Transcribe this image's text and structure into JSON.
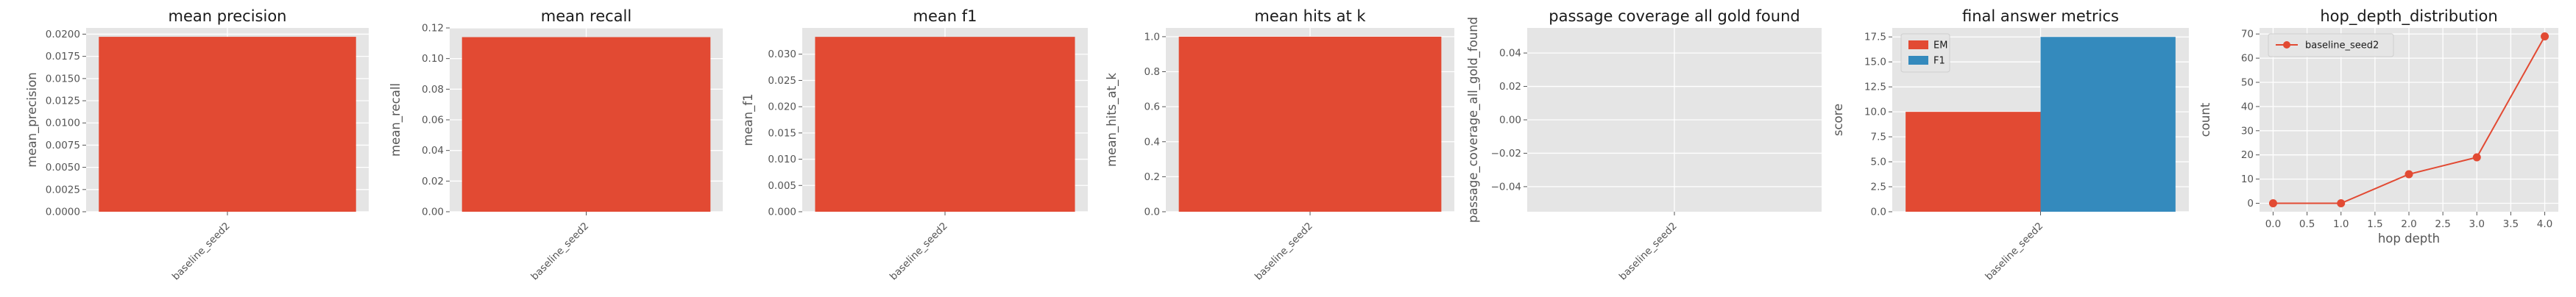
{
  "figure": {
    "background": "#ffffff",
    "panel_background": "#e5e5e5",
    "grid_color": "#ffffff"
  },
  "chart_data": [
    {
      "type": "bar",
      "title": "mean precision",
      "xlabel": "",
      "ylabel": "mean_precision",
      "categories": [
        "baseline_seed2"
      ],
      "series": [
        {
          "values": [
            0.0197
          ],
          "color": "#e24a33"
        }
      ],
      "ylim": [
        0,
        0.0207
      ],
      "yticks": [
        0,
        0.0025,
        0.005,
        0.0075,
        0.01,
        0.0125,
        0.015,
        0.0175,
        0.02
      ],
      "ytick_labels": [
        "0.0000",
        "0.0025",
        "0.0050",
        "0.0075",
        "0.0100",
        "0.0125",
        "0.0150",
        "0.0175",
        "0.0200"
      ],
      "grid": true
    },
    {
      "type": "bar",
      "title": "mean recall",
      "xlabel": "",
      "ylabel": "mean_recall",
      "categories": [
        "baseline_seed2"
      ],
      "series": [
        {
          "values": [
            0.114
          ],
          "color": "#e24a33"
        }
      ],
      "ylim": [
        0,
        0.12
      ],
      "yticks": [
        0,
        0.02,
        0.04,
        0.06,
        0.08,
        0.1,
        0.12
      ],
      "ytick_labels": [
        "0.00",
        "0.02",
        "0.04",
        "0.06",
        "0.08",
        "0.10",
        "0.12"
      ],
      "grid": true
    },
    {
      "type": "bar",
      "title": "mean f1",
      "xlabel": "",
      "ylabel": "mean_f1",
      "categories": [
        "baseline_seed2"
      ],
      "series": [
        {
          "values": [
            0.0333
          ],
          "color": "#e24a33"
        }
      ],
      "ylim": [
        0,
        0.035
      ],
      "yticks": [
        0,
        0.005,
        0.01,
        0.015,
        0.02,
        0.025,
        0.03
      ],
      "ytick_labels": [
        "0.000",
        "0.005",
        "0.010",
        "0.015",
        "0.020",
        "0.025",
        "0.030"
      ],
      "grid": true
    },
    {
      "type": "bar",
      "title": "mean hits at k",
      "xlabel": "",
      "ylabel": "mean_hits_at_k",
      "categories": [
        "baseline_seed2"
      ],
      "series": [
        {
          "values": [
            1.0
          ],
          "color": "#e24a33"
        }
      ],
      "ylim": [
        0,
        1.05
      ],
      "yticks": [
        0,
        0.2,
        0.4,
        0.6,
        0.8,
        1.0
      ],
      "ytick_labels": [
        "0.0",
        "0.2",
        "0.4",
        "0.6",
        "0.8",
        "1.0"
      ],
      "grid": true
    },
    {
      "type": "bar",
      "title": "passage coverage all gold found",
      "xlabel": "",
      "ylabel": "passage_coverage_all_gold_found",
      "categories": [
        "baseline_seed2"
      ],
      "series": [
        {
          "values": [
            0
          ],
          "color": "#e24a33"
        }
      ],
      "ylim": [
        -0.055,
        0.055
      ],
      "yticks": [
        -0.04,
        -0.02,
        0,
        0.02,
        0.04
      ],
      "ytick_labels": [
        "−0.04",
        "−0.02",
        "0.00",
        "0.02",
        "0.04"
      ],
      "grid": true
    },
    {
      "type": "bar",
      "title": "final answer metrics",
      "xlabel": "",
      "ylabel": "score",
      "categories": [
        "baseline_seed2"
      ],
      "series": [
        {
          "name": "EM",
          "values": [
            10.0
          ],
          "color": "#e24a33"
        },
        {
          "name": "F1",
          "values": [
            17.5
          ],
          "color": "#348abd"
        }
      ],
      "ylim": [
        0,
        18.4
      ],
      "yticks": [
        0,
        2.5,
        5,
        7.5,
        10,
        12.5,
        15,
        17.5
      ],
      "ytick_labels": [
        "0.0",
        "2.5",
        "5.0",
        "7.5",
        "10.0",
        "12.5",
        "15.0",
        "17.5"
      ],
      "legend": "top-left",
      "grid": true
    },
    {
      "type": "line",
      "title": "hop_depth_distribution",
      "xlabel": "hop depth",
      "ylabel": "count",
      "x": [
        0,
        1,
        2,
        3,
        4
      ],
      "series": [
        {
          "name": "baseline_seed2",
          "values": [
            0,
            0,
            12,
            19,
            69
          ],
          "color": "#e24a33"
        }
      ],
      "xlim": [
        -0.2,
        4.2
      ],
      "xticks": [
        0,
        0.5,
        1,
        1.5,
        2,
        2.5,
        3,
        3.5,
        4
      ],
      "xtick_labels": [
        "0.0",
        "0.5",
        "1.0",
        "1.5",
        "2.0",
        "2.5",
        "3.0",
        "3.5",
        "4.0"
      ],
      "ylim": [
        -3.5,
        72.5
      ],
      "yticks": [
        0,
        10,
        20,
        30,
        40,
        50,
        60,
        70
      ],
      "ytick_labels": [
        "0",
        "10",
        "20",
        "30",
        "40",
        "50",
        "60",
        "70"
      ],
      "legend": "top-left",
      "grid": true
    }
  ]
}
